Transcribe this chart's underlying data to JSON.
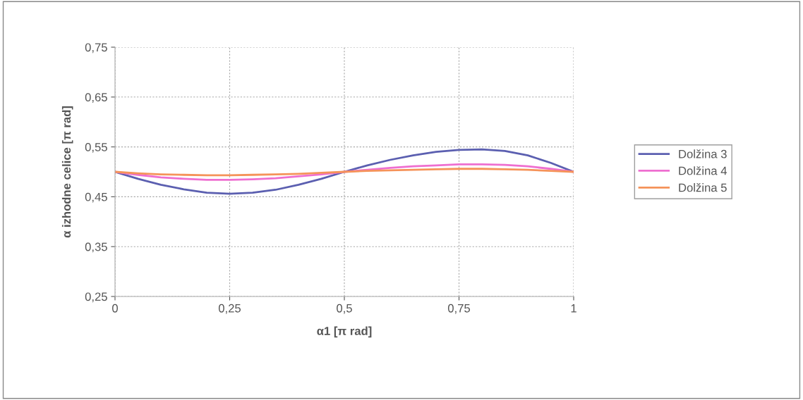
{
  "chart_data": {
    "type": "line",
    "xlabel": "α1 [π rad]",
    "ylabel": "α izhodne celice [π rad]",
    "x": [
      0,
      0.05,
      0.1,
      0.15,
      0.2,
      0.25,
      0.3,
      0.35,
      0.4,
      0.45,
      0.5,
      0.55,
      0.6,
      0.65,
      0.7,
      0.75,
      0.8,
      0.85,
      0.9,
      0.95,
      1
    ],
    "series": [
      {
        "name": "Dolžina 3",
        "color": "#5b5fb0",
        "values": [
          0.5,
          0.486,
          0.474,
          0.465,
          0.458,
          0.456,
          0.458,
          0.464,
          0.474,
          0.486,
          0.5,
          0.513,
          0.524,
          0.533,
          0.54,
          0.544,
          0.545,
          0.542,
          0.533,
          0.518,
          0.5
        ]
      },
      {
        "name": "Dolžina 4",
        "color": "#ee6fd0",
        "values": [
          0.5,
          0.494,
          0.489,
          0.486,
          0.484,
          0.484,
          0.485,
          0.487,
          0.491,
          0.495,
          0.5,
          0.504,
          0.508,
          0.511,
          0.513,
          0.515,
          0.515,
          0.514,
          0.511,
          0.506,
          0.5
        ]
      },
      {
        "name": "Dolžina 5",
        "color": "#f5935a",
        "values": [
          0.5,
          0.497,
          0.495,
          0.494,
          0.493,
          0.493,
          0.494,
          0.495,
          0.496,
          0.498,
          0.5,
          0.502,
          0.503,
          0.504,
          0.505,
          0.506,
          0.506,
          0.505,
          0.504,
          0.502,
          0.5
        ]
      }
    ],
    "xlim": [
      0,
      1
    ],
    "xticks": [
      0,
      {
        "value": 0.25,
        "label": "0,25"
      },
      {
        "value": 0.5,
        "label": "0,5"
      },
      {
        "value": 0.75,
        "label": "0,75"
      },
      1
    ],
    "ylim": [
      0.25,
      0.75
    ],
    "yticks": [
      {
        "value": 0.25,
        "label": "0,25"
      },
      {
        "value": 0.35,
        "label": "0,35"
      },
      {
        "value": 0.45,
        "label": "0,45"
      },
      {
        "value": 0.55,
        "label": "0,55"
      },
      {
        "value": 0.65,
        "label": "0,65"
      },
      {
        "value": 0.75,
        "label": "0,75"
      }
    ],
    "grid": true,
    "legend": "right",
    "marker": "none",
    "line_style": "solid"
  }
}
